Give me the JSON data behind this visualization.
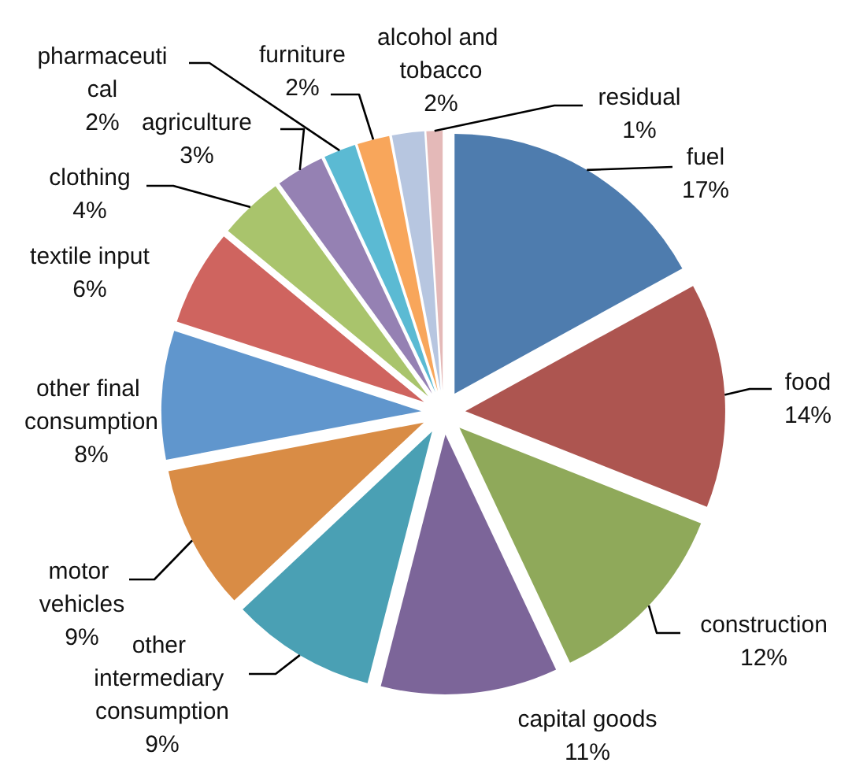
{
  "chart_data": {
    "type": "pie",
    "categories": [
      "fuel",
      "food",
      "construction",
      "capital goods",
      "other intermediary consumption",
      "motor vehicles",
      "other final consumption",
      "textile input",
      "clothing",
      "agriculture",
      "pharmaceutical",
      "furniture",
      "alcohol and tobacco",
      "residual"
    ],
    "values": [
      17,
      14,
      12,
      11,
      9,
      9,
      8,
      6,
      4,
      3,
      2,
      2,
      2,
      1
    ],
    "colors": [
      "#4e7cae",
      "#ad5550",
      "#8fa95a",
      "#7c6599",
      "#4aa0b4",
      "#d98c45",
      "#6096cd",
      "#cf645f",
      "#a9c46c",
      "#9581b3",
      "#5bbad3",
      "#f8a65b",
      "#b7c6e0",
      "#e4b9b8"
    ],
    "value_labels": [
      "17%",
      "14%",
      "12%",
      "11%",
      "9%",
      "9%",
      "8%",
      "6%",
      "4%",
      "3%",
      "2%",
      "2%",
      "2%",
      "1%"
    ]
  }
}
